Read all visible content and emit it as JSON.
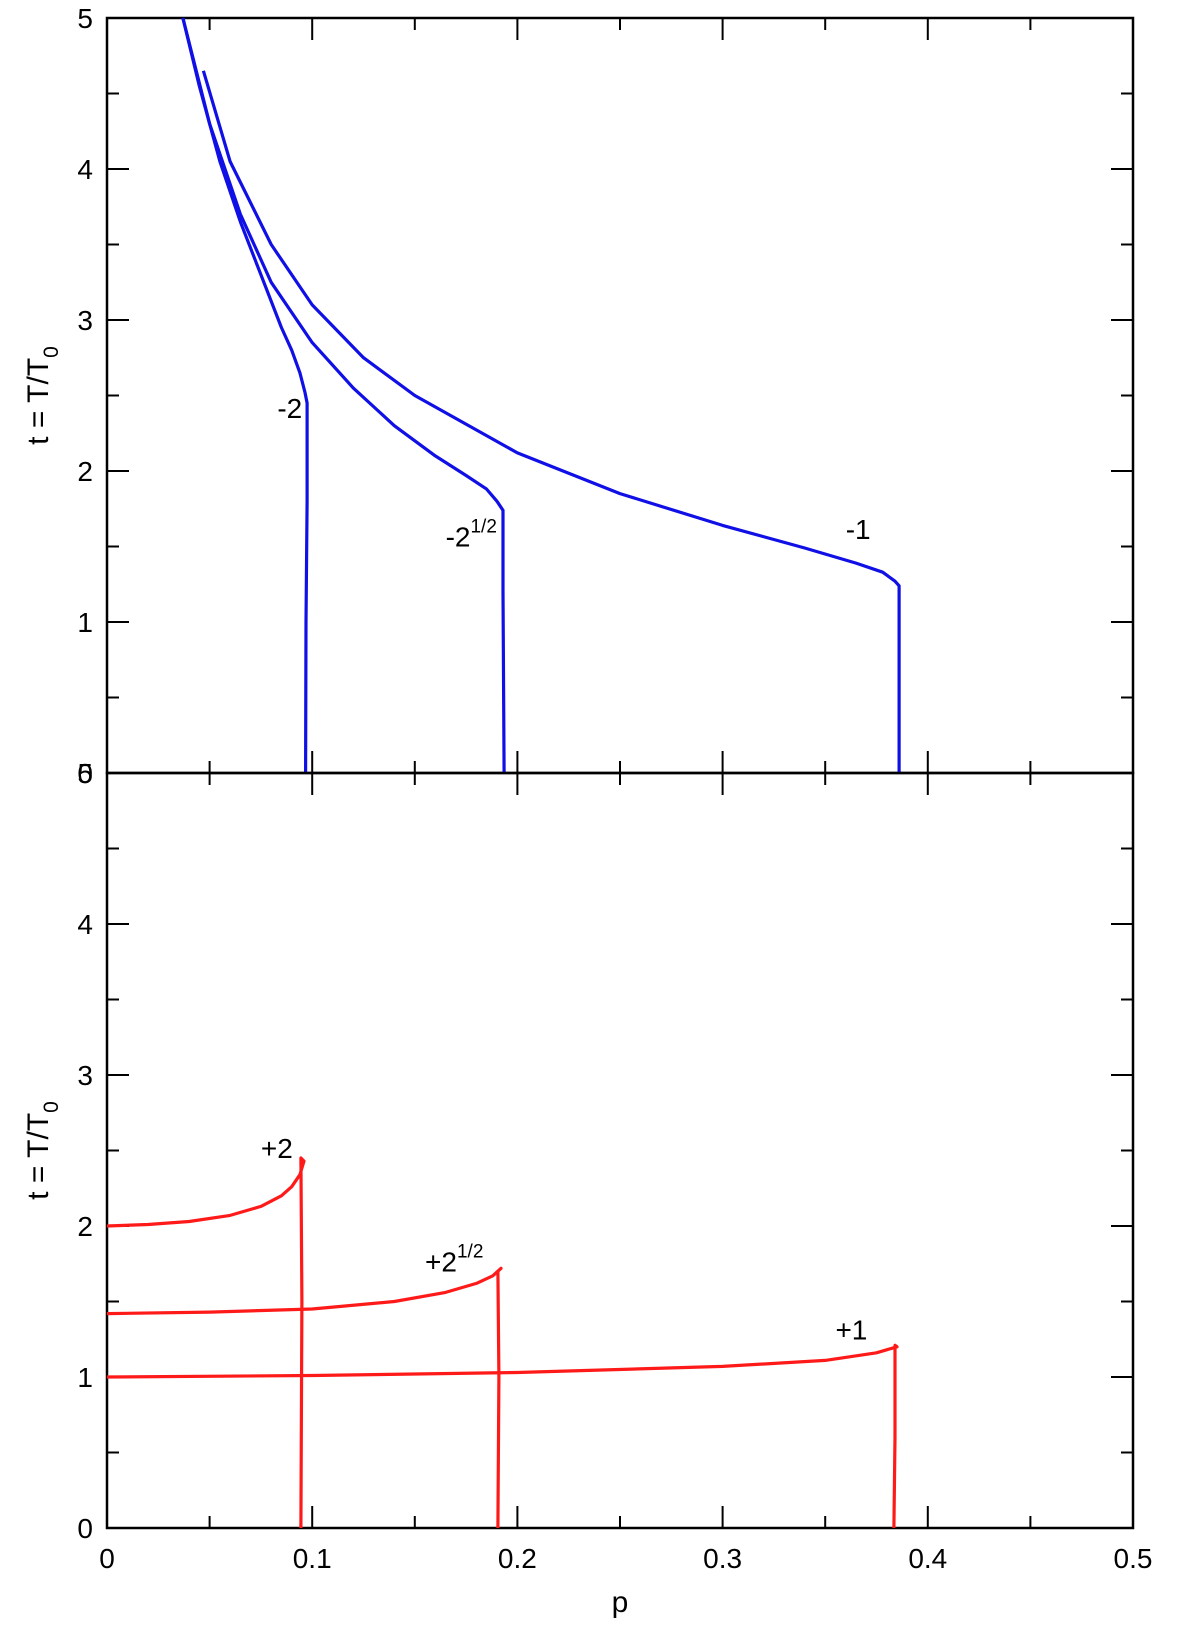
{
  "chart_data": [
    {
      "type": "line",
      "panel": "top",
      "xlabel": "",
      "ylabel": "t = T/T",
      "ylabel_sub": "0",
      "xlim": [
        0,
        0.5
      ],
      "ylim": [
        0,
        5
      ],
      "yticks": [
        "0",
        "1",
        "2",
        "3",
        "4",
        "5"
      ],
      "color": "#1010e6",
      "series": [
        {
          "label": "-2",
          "label_sup": "",
          "points": [
            [
              0.037,
              5.0
            ],
            [
              0.045,
              4.55
            ],
            [
              0.055,
              4.05
            ],
            [
              0.065,
              3.65
            ],
            [
              0.075,
              3.3
            ],
            [
              0.085,
              2.95
            ],
            [
              0.09,
              2.8
            ],
            [
              0.094,
              2.65
            ],
            [
              0.0965,
              2.52
            ],
            [
              0.0975,
              2.45
            ],
            [
              0.0975,
              1.8
            ],
            [
              0.097,
              1.0
            ],
            [
              0.0968,
              0.0
            ]
          ]
        },
        {
          "label": "-2",
          "label_sup": "1/2",
          "points": [
            [
              0.037,
              5.0
            ],
            [
              0.05,
              4.3
            ],
            [
              0.065,
              3.7
            ],
            [
              0.08,
              3.25
            ],
            [
              0.1,
              2.85
            ],
            [
              0.12,
              2.55
            ],
            [
              0.14,
              2.3
            ],
            [
              0.16,
              2.1
            ],
            [
              0.175,
              1.97
            ],
            [
              0.185,
              1.88
            ],
            [
              0.19,
              1.8
            ],
            [
              0.193,
              1.74
            ],
            [
              0.193,
              1.2
            ],
            [
              0.1935,
              0.0
            ]
          ]
        },
        {
          "label": "-1",
          "label_sup": "",
          "points": [
            [
              0.047,
              4.65
            ],
            [
              0.06,
              4.05
            ],
            [
              0.08,
              3.5
            ],
            [
              0.1,
              3.1
            ],
            [
              0.125,
              2.75
            ],
            [
              0.15,
              2.5
            ],
            [
              0.2,
              2.12
            ],
            [
              0.25,
              1.85
            ],
            [
              0.3,
              1.64
            ],
            [
              0.34,
              1.49
            ],
            [
              0.365,
              1.39
            ],
            [
              0.378,
              1.33
            ],
            [
              0.384,
              1.27
            ],
            [
              0.386,
              1.24
            ],
            [
              0.386,
              0.9
            ],
            [
              0.386,
              0.0
            ]
          ]
        }
      ]
    },
    {
      "type": "line",
      "panel": "bottom",
      "xlabel": "p",
      "ylabel": "t = T/T",
      "ylabel_sub": "0",
      "xlim": [
        0,
        0.5
      ],
      "ylim": [
        0,
        5
      ],
      "xticks": [
        "0",
        "0.1",
        "0.2",
        "0.3",
        "0.4",
        "0.5"
      ],
      "yticks": [
        "0",
        "1",
        "2",
        "3",
        "4",
        "5"
      ],
      "color": "#ff1a1a",
      "series": [
        {
          "label": "+2",
          "label_sup": "",
          "points": [
            [
              0.0,
              2.0
            ],
            [
              0.02,
              2.01
            ],
            [
              0.04,
              2.03
            ],
            [
              0.06,
              2.07
            ],
            [
              0.075,
              2.13
            ],
            [
              0.085,
              2.2
            ],
            [
              0.09,
              2.26
            ],
            [
              0.094,
              2.34
            ],
            [
              0.096,
              2.43
            ],
            [
              0.0945,
              2.45
            ],
            [
              0.095,
              1.5
            ],
            [
              0.0945,
              0.0
            ]
          ]
        },
        {
          "label": "+2",
          "label_sup": "1/2",
          "points": [
            [
              0.0,
              1.42
            ],
            [
              0.05,
              1.43
            ],
            [
              0.1,
              1.45
            ],
            [
              0.14,
              1.5
            ],
            [
              0.165,
              1.56
            ],
            [
              0.18,
              1.62
            ],
            [
              0.188,
              1.67
            ],
            [
              0.192,
              1.72
            ],
            [
              0.1905,
              1.7
            ],
            [
              0.191,
              1.0
            ],
            [
              0.1905,
              0.0
            ]
          ]
        },
        {
          "label": "+1",
          "label_sup": "",
          "points": [
            [
              0.0,
              1.0
            ],
            [
              0.1,
              1.01
            ],
            [
              0.2,
              1.03
            ],
            [
              0.3,
              1.07
            ],
            [
              0.35,
              1.11
            ],
            [
              0.375,
              1.16
            ],
            [
              0.385,
              1.2
            ],
            [
              0.384,
              1.21
            ],
            [
              0.384,
              0.6
            ],
            [
              0.3835,
              0.0
            ]
          ]
        }
      ]
    }
  ]
}
